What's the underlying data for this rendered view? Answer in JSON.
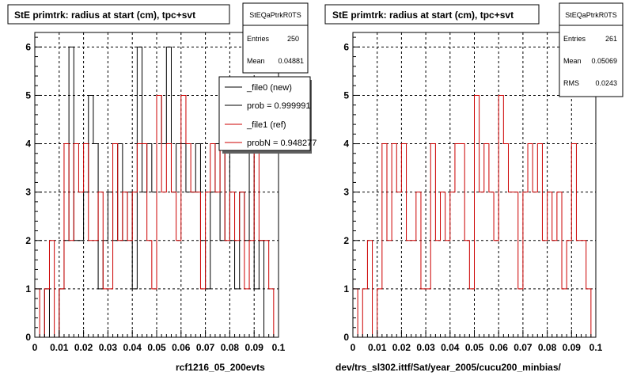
{
  "footer": {
    "left_label": "rcf1216_05_200evts",
    "right_label": "dev/trs_sl302.ittf/Sat/year_2005/cucu200_minbias/"
  },
  "chart_data": [
    {
      "type": "line",
      "title": "StE primtrk: radius at start (cm), tpc+svt",
      "xlim": [
        0,
        0.1
      ],
      "ylim": [
        0,
        6.3
      ],
      "x_ticks": [
        "0",
        "0.01",
        "0.02",
        "0.03",
        "0.04",
        "0.05",
        "0.06",
        "0.07",
        "0.08",
        "0.09",
        "0.1"
      ],
      "y_ticks": [
        "0",
        "1",
        "2",
        "3",
        "4",
        "5",
        "6"
      ],
      "grid": true,
      "bin_edges": [
        0,
        0.002,
        0.004,
        0.006,
        0.008,
        0.01,
        0.012,
        0.014,
        0.016,
        0.018,
        0.02,
        0.022,
        0.024,
        0.026,
        0.028,
        0.03,
        0.032,
        0.034,
        0.036,
        0.038,
        0.04,
        0.042,
        0.044,
        0.046,
        0.048,
        0.05,
        0.052,
        0.054,
        0.056,
        0.058,
        0.06,
        0.062,
        0.064,
        0.066,
        0.068,
        0.07,
        0.072,
        0.074,
        0.076,
        0.078,
        0.08,
        0.082,
        0.084,
        0.086,
        0.088,
        0.09,
        0.092,
        0.094,
        0.096,
        0.098,
        0.1
      ],
      "series": [
        {
          "name": "_file0 (new)",
          "color": "#000000",
          "values": [
            0,
            0,
            1,
            0,
            0,
            1,
            2,
            6,
            2,
            2,
            3,
            5,
            4,
            1,
            2,
            3,
            2,
            4,
            2,
            3,
            1,
            6,
            3,
            4,
            3,
            5,
            4,
            6,
            3,
            4,
            4,
            3,
            3,
            4,
            2,
            1,
            3,
            4,
            2,
            4,
            2,
            1,
            3,
            2,
            4,
            1,
            2,
            0,
            0,
            0
          ]
        },
        {
          "name": "_file1 (ref)",
          "color": "#cc0000",
          "values": [
            1,
            0,
            1,
            2,
            0,
            1,
            4,
            2,
            4,
            3,
            4,
            2,
            2,
            3,
            1,
            1,
            4,
            2,
            3,
            2,
            3,
            4,
            4,
            2,
            1,
            5,
            3,
            4,
            3,
            2,
            5,
            4,
            3,
            3,
            1,
            3,
            4,
            3,
            4,
            2,
            3,
            2,
            3,
            1,
            2,
            4,
            2,
            2,
            1,
            0
          ]
        }
      ],
      "stats": {
        "name": "StEQaPtrkR0TS",
        "entries": "250",
        "mean": "0.04881",
        "entries_label": "Entries",
        "mean_label": "Mean"
      },
      "legend": {
        "position": "top-right",
        "entries": [
          "_file0 (new)",
          "prob = 0.999991",
          "_file1 (ref)",
          "probN = 0.948277"
        ],
        "colors": [
          "#000000",
          "#000000",
          "#cc0000",
          "#cc0000"
        ]
      }
    },
    {
      "type": "line",
      "title": "StE primtrk: radius at start (cm), tpc+svt",
      "xlim": [
        0,
        0.1
      ],
      "ylim": [
        0,
        6.3
      ],
      "x_ticks": [
        "0",
        "0.01",
        "0.02",
        "0.03",
        "0.04",
        "0.05",
        "0.06",
        "0.07",
        "0.08",
        "0.09",
        "0.1"
      ],
      "y_ticks": [
        "0",
        "1",
        "2",
        "3",
        "4",
        "5",
        "6"
      ],
      "grid": true,
      "bin_edges": [
        0,
        0.002,
        0.004,
        0.006,
        0.008,
        0.01,
        0.012,
        0.014,
        0.016,
        0.018,
        0.02,
        0.022,
        0.024,
        0.026,
        0.028,
        0.03,
        0.032,
        0.034,
        0.036,
        0.038,
        0.04,
        0.042,
        0.044,
        0.046,
        0.048,
        0.05,
        0.052,
        0.054,
        0.056,
        0.058,
        0.06,
        0.062,
        0.064,
        0.066,
        0.068,
        0.07,
        0.072,
        0.074,
        0.076,
        0.078,
        0.08,
        0.082,
        0.084,
        0.086,
        0.088,
        0.09,
        0.092,
        0.094,
        0.096,
        0.098,
        0.1
      ],
      "series": [
        {
          "name": "",
          "color": "#cc0000",
          "values": [
            1,
            0,
            1,
            2,
            0,
            1,
            4,
            2,
            4,
            3,
            4,
            2,
            2,
            3,
            1,
            1,
            4,
            2,
            3,
            2,
            3,
            4,
            4,
            2,
            1,
            5,
            3,
            4,
            3,
            2,
            5,
            4,
            3,
            3,
            1,
            3,
            4,
            3,
            4,
            2,
            3,
            2,
            3,
            1,
            2,
            4,
            2,
            2,
            1,
            0
          ]
        }
      ],
      "stats": {
        "name": "StEQaPtrkR0TS",
        "entries": "261",
        "mean": "0.05069",
        "rms": "0.0243",
        "entries_label": "Entries",
        "mean_label": "Mean",
        "rms_label": "RMS"
      }
    }
  ]
}
